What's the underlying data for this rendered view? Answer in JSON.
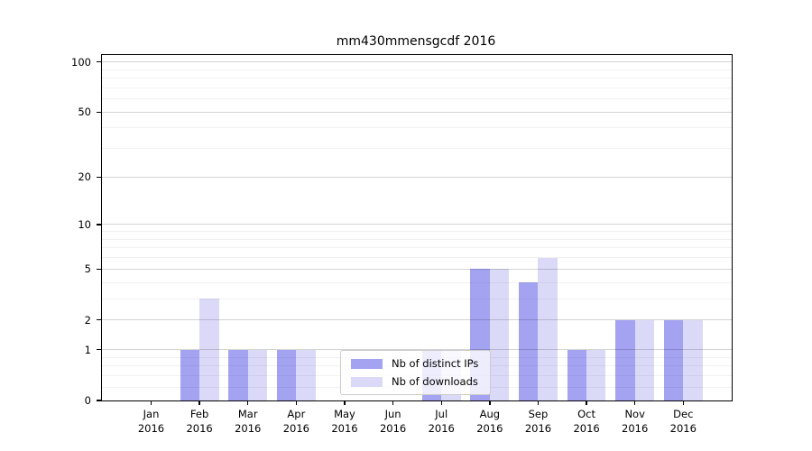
{
  "chart_data": {
    "type": "bar",
    "title": "mm430mmensgcdf 2016",
    "categories": [
      "Jan",
      "Feb",
      "Mar",
      "Apr",
      "May",
      "Jun",
      "Jul",
      "Aug",
      "Sep",
      "Oct",
      "Nov",
      "Dec"
    ],
    "xtick_year": "2016",
    "series": [
      {
        "name": "Nb of distinct IPs",
        "color": "#a3a3f2",
        "values": [
          0,
          1,
          1,
          1,
          0,
          0,
          1,
          5,
          4,
          1,
          2,
          2
        ]
      },
      {
        "name": "Nb of downloads",
        "color": "#dadaf8",
        "values": [
          0,
          3,
          1,
          1,
          0,
          0,
          1,
          5,
          6,
          1,
          2,
          2
        ]
      }
    ],
    "yscale": "log1p",
    "yticks": [
      0,
      1,
      2,
      5,
      10,
      20,
      50,
      100
    ],
    "minor_yticks": [
      0.2,
      0.4,
      0.6,
      0.8,
      3,
      4,
      6,
      7,
      8,
      9,
      30,
      40,
      60,
      70,
      80,
      90
    ],
    "ylim": [
      0,
      110
    ],
    "xlabel": "",
    "ylabel": "",
    "grid": "horizontal",
    "legend_position": "lower center",
    "background_color": "#ffffff"
  }
}
